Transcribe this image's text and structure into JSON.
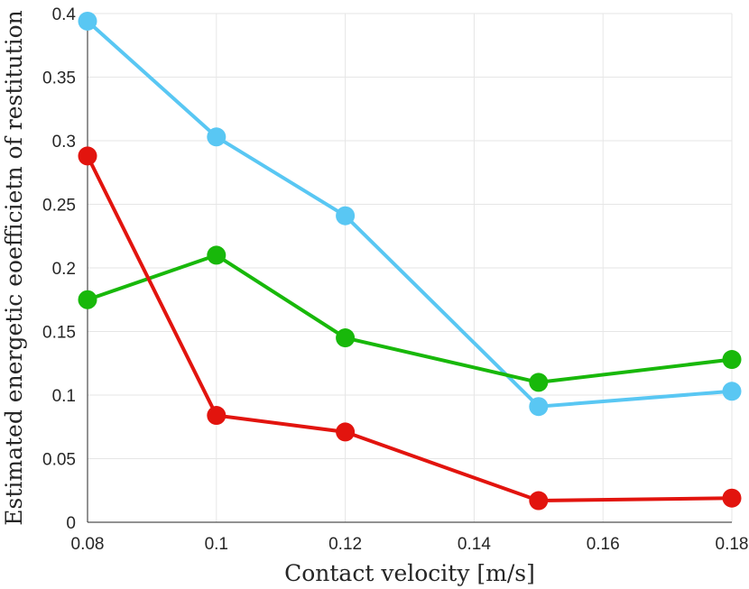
{
  "chart_data": {
    "type": "line",
    "title": "",
    "xlabel": "Contact velocity [m/s]",
    "ylabel": "Estimated energetic eoefficietn of restitution",
    "xlim": [
      0.08,
      0.18
    ],
    "ylim": [
      0,
      0.4
    ],
    "grid": true,
    "x_ticks": [
      "0.08",
      "0.1",
      "0.12",
      "0.14",
      "0.16",
      "0.18"
    ],
    "y_ticks": [
      "0",
      "0.05",
      "0.1",
      "0.15",
      "0.2",
      "0.25",
      "0.3",
      "0.35",
      "0.4"
    ],
    "x": [
      0.08,
      0.1,
      0.12,
      0.15,
      0.18
    ],
    "series": [
      {
        "name": "blue",
        "color": "#59c7f3",
        "values": [
          0.394,
          0.303,
          0.241,
          0.091,
          0.103
        ]
      },
      {
        "name": "green",
        "color": "#18b80a",
        "values": [
          0.175,
          0.21,
          0.145,
          0.11,
          0.128
        ]
      },
      {
        "name": "red",
        "color": "#e2140e",
        "values": [
          0.288,
          0.084,
          0.071,
          0.017,
          0.019
        ]
      }
    ]
  }
}
